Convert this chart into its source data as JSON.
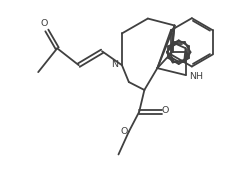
{
  "bg_color": "#ffffff",
  "line_color": "#404040",
  "line_width": 1.3,
  "font_size": 6.8,
  "figsize": [
    2.43,
    1.73
  ],
  "dpi": 100,
  "xlim": [
    -0.5,
    10.5
  ],
  "ylim": [
    -0.5,
    8.5
  ]
}
